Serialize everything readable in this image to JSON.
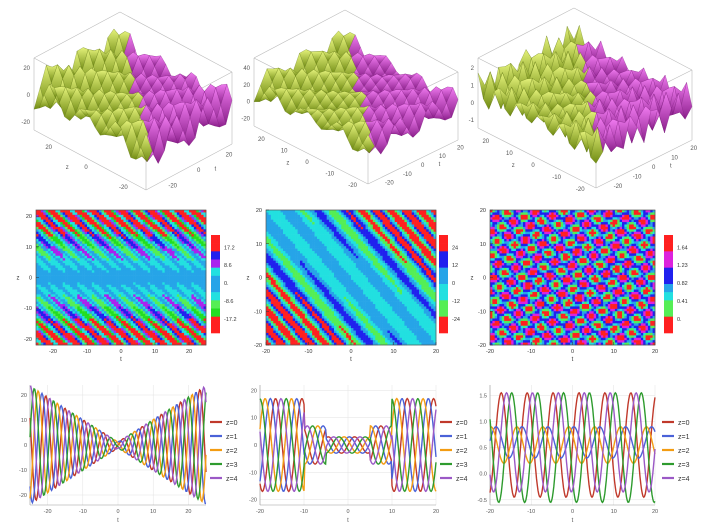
{
  "chart_data": [
    {
      "type": "surface3d",
      "panel": "surface-1",
      "x_label": "z",
      "y_label": "t",
      "z_ticks": [
        "20",
        "0",
        "-20"
      ],
      "x_ticks": [
        "20",
        "0",
        "-20"
      ],
      "y_ticks": [
        "-20",
        "0",
        "20"
      ],
      "colors": [
        "#c7e23a",
        "#cc33cc"
      ]
    },
    {
      "type": "surface3d",
      "panel": "surface-2",
      "x_label": "z",
      "y_label": "t",
      "z_ticks": [
        "40",
        "20",
        "0",
        "-20"
      ],
      "x_ticks": [
        "20",
        "10",
        "0",
        "-10",
        "-20"
      ],
      "y_ticks": [
        "-20",
        "-10",
        "0",
        "10",
        "20"
      ],
      "colors": [
        "#c7e23a",
        "#cc33cc"
      ]
    },
    {
      "type": "surface3d",
      "panel": "surface-3",
      "x_label": "z",
      "y_label": "t",
      "z_ticks": [
        "2",
        "1",
        "0",
        "-1"
      ],
      "x_ticks": [
        "20",
        "10",
        "0",
        "-10",
        "-20"
      ],
      "y_ticks": [
        "-20",
        "-10",
        "0",
        "10",
        "20"
      ],
      "colors": [
        "#c7e23a",
        "#cc33cc"
      ]
    },
    {
      "type": "heatmap",
      "panel": "density-1",
      "x_label": "t",
      "y_label": "z",
      "xlim": [
        -25,
        25
      ],
      "ylim": [
        -22,
        22
      ],
      "x_ticks": [
        "-20",
        "-10",
        "0",
        "10",
        "20"
      ],
      "y_ticks": [
        "20",
        "10",
        "0",
        "-10",
        "-20"
      ],
      "legend": [
        "17.2",
        "8.6",
        "0.",
        "-8.6",
        "-17.2"
      ],
      "colors": [
        "#ff2020",
        "#ff2020",
        "#2020ee",
        "#aa22ee",
        "#22e0e0",
        "#26a4e8",
        "#26a4e8",
        "#22e0e0",
        "#55ee55",
        "#22dd22",
        "#ff2020",
        "#ff2020"
      ]
    },
    {
      "type": "heatmap",
      "panel": "density-2",
      "x_label": "t",
      "y_label": "z",
      "xlim": [
        -20,
        20
      ],
      "ylim": [
        -20,
        20
      ],
      "x_ticks": [
        "-20",
        "-10",
        "0",
        "10",
        "20"
      ],
      "y_ticks": [
        "20",
        "10",
        "0",
        "-10",
        "-20"
      ],
      "legend": [
        "24",
        "12",
        "0",
        "-12",
        "-24"
      ],
      "colors": [
        "#ff2020",
        "#ff2020",
        "#2020ee",
        "#2020ee",
        "#26a4e8",
        "#26a4e8",
        "#22e0e0",
        "#22e0e0",
        "#55ee55",
        "#55ee55",
        "#ff2020",
        "#ff2020"
      ]
    },
    {
      "type": "heatmap",
      "panel": "density-3",
      "x_label": "t",
      "y_label": "z",
      "xlim": [
        -20,
        20
      ],
      "ylim": [
        -20,
        20
      ],
      "x_ticks": [
        "-20",
        "-10",
        "0",
        "10",
        "20"
      ],
      "y_ticks": [
        "20",
        "10",
        "0",
        "-10",
        "-20"
      ],
      "legend": [
        "1.64",
        "1.23",
        "0.82",
        "0.41",
        "0."
      ],
      "colors": [
        "#ff2020",
        "#ff2020",
        "#dd22dd",
        "#dd22dd",
        "#2020ee",
        "#2020ee",
        "#26a4e8",
        "#22e0e0",
        "#55ee55",
        "#55ee55",
        "#ff2020",
        "#ff2020"
      ]
    },
    {
      "type": "line",
      "panel": "lines-1",
      "x_label": "t",
      "xlim": [
        -25,
        25
      ],
      "ylim": [
        -24,
        24
      ],
      "x_ticks": [
        -20,
        -10,
        0,
        10,
        20
      ],
      "y_ticks": [
        -20,
        -10,
        0,
        10,
        20
      ],
      "series": [
        {
          "name": "z=0",
          "color": "#c0392b"
        },
        {
          "name": "z=1",
          "color": "#4a62d8"
        },
        {
          "name": "z=2",
          "color": "#f39c12"
        },
        {
          "name": "z=3",
          "color": "#2e9b2e"
        },
        {
          "name": "z=4",
          "color": "#9b59c6"
        }
      ]
    },
    {
      "type": "line",
      "panel": "lines-2",
      "x_label": "t",
      "xlim": [
        -20,
        20
      ],
      "ylim": [
        -22,
        22
      ],
      "x_ticks": [
        -20,
        -10,
        0,
        10,
        20
      ],
      "y_ticks": [
        -20,
        -10,
        0,
        10,
        20
      ],
      "series": [
        {
          "name": "z=0",
          "color": "#c0392b"
        },
        {
          "name": "z=1",
          "color": "#4a62d8"
        },
        {
          "name": "z=2",
          "color": "#f39c12"
        },
        {
          "name": "z=3",
          "color": "#2e9b2e"
        },
        {
          "name": "z=4",
          "color": "#9b59c6"
        }
      ]
    },
    {
      "type": "line",
      "panel": "lines-3",
      "x_label": "t",
      "xlim": [
        -20,
        20
      ],
      "ylim": [
        -0.6,
        1.7
      ],
      "x_ticks": [
        -20,
        -10,
        0,
        10,
        20
      ],
      "y_ticks": [
        -0.5,
        0.0,
        0.5,
        1.0,
        1.5
      ],
      "series": [
        {
          "name": "z=0",
          "color": "#c0392b"
        },
        {
          "name": "z=1",
          "color": "#4a62d8"
        },
        {
          "name": "z=2",
          "color": "#f39c12"
        },
        {
          "name": "z=3",
          "color": "#2e9b2e"
        },
        {
          "name": "z=4",
          "color": "#9b59c6"
        }
      ]
    }
  ]
}
